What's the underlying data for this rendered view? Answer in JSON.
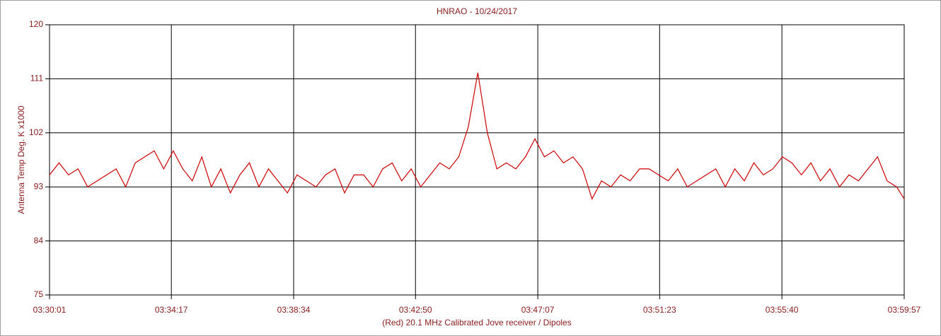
{
  "chart_data": {
    "type": "line",
    "title": "HNRAO - 10/24/2017",
    "x_label": "(Red) 20.1 MHz Calibrated Jove receiver / Dipoles",
    "y_label": "Antenna Temp Deg. K x1000",
    "grid": true,
    "xlim": [
      "03:30:01",
      "03:59:57"
    ],
    "xticks": [
      "03:30:01",
      "03:34:17",
      "03:38:34",
      "03:42:50",
      "03:47:07",
      "03:51:23",
      "03:55:40",
      "03:59:57"
    ],
    "ylim": [
      75,
      120
    ],
    "yticks": [
      75,
      84,
      93,
      102,
      111,
      120
    ],
    "x": [
      "03:30:01",
      "03:30:21",
      "03:30:41",
      "03:31:01",
      "03:31:21",
      "03:31:41",
      "03:32:01",
      "03:32:21",
      "03:32:41",
      "03:33:01",
      "03:33:21",
      "03:33:41",
      "03:34:01",
      "03:34:21",
      "03:34:41",
      "03:35:01",
      "03:35:21",
      "03:35:41",
      "03:36:01",
      "03:36:21",
      "03:36:41",
      "03:37:01",
      "03:37:21",
      "03:37:41",
      "03:38:01",
      "03:38:21",
      "03:38:41",
      "03:39:01",
      "03:39:21",
      "03:39:41",
      "03:40:01",
      "03:40:21",
      "03:40:41",
      "03:41:01",
      "03:41:21",
      "03:41:41",
      "03:42:01",
      "03:42:21",
      "03:42:41",
      "03:43:01",
      "03:43:21",
      "03:43:41",
      "03:44:01",
      "03:44:21",
      "03:44:41",
      "03:45:01",
      "03:45:21",
      "03:45:41",
      "03:46:01",
      "03:46:21",
      "03:46:41",
      "03:47:01",
      "03:47:21",
      "03:47:41",
      "03:48:01",
      "03:48:21",
      "03:48:41",
      "03:49:01",
      "03:49:21",
      "03:49:41",
      "03:50:01",
      "03:50:21",
      "03:50:41",
      "03:51:01",
      "03:51:21",
      "03:51:41",
      "03:52:01",
      "03:52:21",
      "03:52:41",
      "03:53:01",
      "03:53:21",
      "03:53:41",
      "03:54:01",
      "03:54:21",
      "03:54:41",
      "03:55:01",
      "03:55:21",
      "03:55:41",
      "03:56:01",
      "03:56:21",
      "03:56:41",
      "03:57:01",
      "03:57:21",
      "03:57:41",
      "03:58:01",
      "03:58:21",
      "03:58:41",
      "03:59:01",
      "03:59:21",
      "03:59:41",
      "03:59:57"
    ],
    "series": [
      {
        "color": "#cc0000",
        "values": [
          95,
          97,
          95,
          96,
          93,
          94,
          95,
          96,
          93,
          97,
          98,
          99,
          96,
          99,
          96,
          94,
          98,
          93,
          96,
          92,
          95,
          97,
          93,
          96,
          94,
          92,
          95,
          94,
          93,
          95,
          96,
          92,
          95,
          95,
          93,
          96,
          97,
          94,
          96,
          93,
          95,
          97,
          96,
          98,
          103,
          112,
          102,
          96,
          97,
          96,
          98,
          101,
          98,
          99,
          97,
          98,
          96,
          91,
          94,
          93,
          95,
          94,
          96,
          96,
          95,
          94,
          96,
          93,
          94,
          95,
          96,
          93,
          96,
          94,
          97,
          95,
          96,
          98,
          97,
          95,
          97,
          94,
          96,
          93,
          95,
          94,
          96,
          98,
          94,
          93,
          91
        ]
      }
    ]
  }
}
